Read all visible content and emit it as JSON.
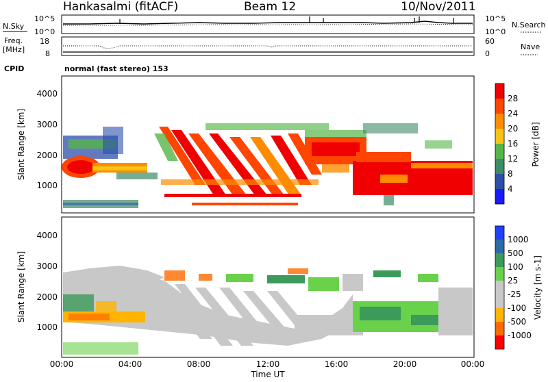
{
  "header": {
    "station": "Hankasalmi (fitACF)",
    "beam": "Beam 12",
    "date": "10/Nov/2011"
  },
  "noise_panel": {
    "left_label": "N.Sky",
    "right_label": "N.Search",
    "left_ticks": [
      "10^5",
      "10^0"
    ],
    "right_ticks": [
      "10^5",
      "10^0"
    ]
  },
  "freq_panel": {
    "left_label_1": "Freq.",
    "left_label_2": "[MHz]",
    "right_label": "Nave",
    "left_ticks": [
      "18",
      "8"
    ],
    "right_ticks": [
      "60",
      "0"
    ]
  },
  "cpid": {
    "label": "CPID",
    "value": "normal (fast stereo) 153"
  },
  "x_axis": {
    "ticks": [
      "00:00",
      "04:00",
      "08:00",
      "12:00",
      "16:00",
      "20:00",
      "00:00"
    ],
    "label": "Time UT"
  },
  "colors": {
    "power": [
      "#1a1aff",
      "#2c4fa8",
      "#3c8c68",
      "#55b548",
      "#f5c414",
      "#ff8c00",
      "#ff4500",
      "#f00000"
    ],
    "velocity": [
      "#ff0000",
      "#ff6a00",
      "#ffb400",
      "#c8c8c8",
      "#c8c8c8",
      "#6ad14a",
      "#3c9a5a",
      "#2c6aa8",
      "#2040ff"
    ]
  },
  "chart_data": [
    {
      "type": "heatmap",
      "title": "Power",
      "xlabel": "",
      "ylabel": "Slant Range [km]",
      "x_ticks": [
        "00:00",
        "04:00",
        "08:00",
        "12:00",
        "16:00",
        "20:00",
        "00:00"
      ],
      "y_ticks": [
        "1000",
        "2000",
        "3000",
        "4000"
      ],
      "ylim": [
        200,
        4600
      ],
      "colorbar_label": "Power [dB]",
      "colorbar_ticks": [
        "4",
        "8",
        "12",
        "16",
        "20",
        "24",
        "28"
      ],
      "features": [
        {
          "name": "dusk-echo",
          "t": [
            0.0,
            2.5
          ],
          "range": [
            1200,
            2000
          ],
          "power": 28
        },
        {
          "name": "dusk-upper",
          "t": [
            0.0,
            2.5
          ],
          "range": [
            2000,
            2800
          ],
          "power": 12
        },
        {
          "name": "descending-stripes",
          "t": [
            6.0,
            13.5
          ],
          "range": [
            500,
            2900
          ],
          "power": 26
        },
        {
          "name": "bottom-band",
          "t": [
            7.5,
            14.0
          ],
          "range": [
            450,
            550
          ],
          "power": 24
        },
        {
          "name": "midnight-band",
          "t": [
            14.0,
            18.0
          ],
          "range": [
            1600,
            2600
          ],
          "power": 24
        },
        {
          "name": "dawn-echo",
          "t": [
            18.0,
            24.0
          ],
          "range": [
            600,
            1700
          ],
          "power": 28
        },
        {
          "name": "near-range",
          "t": [
            0.0,
            4.5
          ],
          "range": [
            250,
            450
          ],
          "power": 6
        }
      ]
    },
    {
      "type": "heatmap",
      "title": "Velocity",
      "xlabel": "Time UT",
      "ylabel": "Slant Range [km]",
      "x_ticks": [
        "00:00",
        "04:00",
        "08:00",
        "12:00",
        "16:00",
        "20:00",
        "00:00"
      ],
      "y_ticks": [
        "1000",
        "2000",
        "3000",
        "4000"
      ],
      "ylim": [
        200,
        4600
      ],
      "colorbar_label": "Velocity [m s-1]",
      "colorbar_ticks": [
        "1000",
        "500",
        "100",
        "25",
        "-25",
        "-100",
        "-500",
        "-1000"
      ],
      "features": [
        {
          "name": "dusk-negative",
          "t": [
            0.0,
            2.5
          ],
          "range": [
            1200,
            2000
          ],
          "velocity": -200
        },
        {
          "name": "ground-scatter",
          "t": [
            0.5,
            17.0
          ],
          "range": [
            800,
            2600
          ],
          "velocity": 0
        },
        {
          "name": "positive-patches",
          "t": [
            6.0,
            16.0
          ],
          "range": [
            2000,
            3100
          ],
          "velocity": 150
        },
        {
          "name": "dawn-positive",
          "t": [
            18.0,
            22.0
          ],
          "range": [
            700,
            1900
          ],
          "velocity": 100
        }
      ]
    }
  ]
}
